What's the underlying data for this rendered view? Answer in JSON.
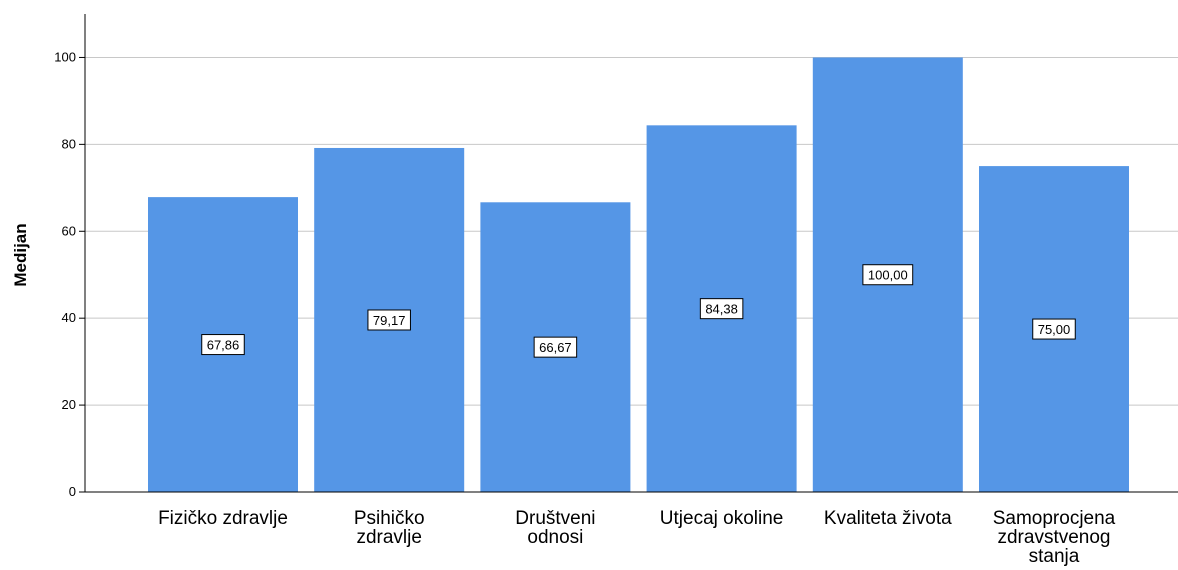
{
  "chart_data": {
    "type": "bar",
    "title": "",
    "xlabel": "",
    "ylabel": "Medijan",
    "ylim": [
      0,
      110
    ],
    "yticks": [
      0,
      20,
      40,
      60,
      80,
      100
    ],
    "grid": true,
    "categories": [
      [
        "Fizičko zdravlje"
      ],
      [
        "Psihičko",
        "zdravlje"
      ],
      [
        "Društveni",
        "odnosi"
      ],
      [
        "Utjecaj okoline"
      ],
      [
        "Kvaliteta života"
      ],
      [
        "Samoprocjena",
        "zdravstvenog",
        "stanja"
      ]
    ],
    "values": [
      67.86,
      79.17,
      66.67,
      84.38,
      100.0,
      75.0
    ],
    "data_labels": [
      "67,86",
      "79,17",
      "66,67",
      "84,38",
      "100,00",
      "75,00"
    ],
    "colors": {
      "bar": "#5596e6",
      "grid": "#c8c8c8",
      "axis": "#000000",
      "label_box": "#ffffff"
    }
  }
}
